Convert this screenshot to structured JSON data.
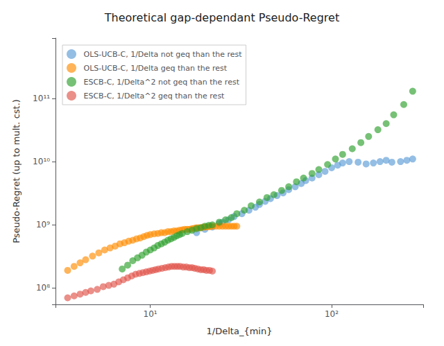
{
  "chart_data": {
    "type": "scatter",
    "title": "Theoretical gap-dependant Pseudo-Regret",
    "xlabel": "1/Delta_{min}",
    "ylabel": "Pseudo-Regret (up to mult. cst.)",
    "log": true,
    "grid": false,
    "legend": "upper left",
    "xlim": [
      3.0,
      320
    ],
    "ylim": [
      55000000.0,
      900000000000.0
    ],
    "xticks": [
      {
        "value": 10,
        "label": "10¹"
      },
      {
        "value": 100,
        "label": "10²"
      }
    ],
    "yticks": [
      {
        "value": 100000000.0,
        "label": "10⁸"
      },
      {
        "value": 1000000000.0,
        "label": "10⁹"
      },
      {
        "value": 10000000000.0,
        "label": "10¹⁰"
      },
      {
        "value": 100000000000.0,
        "label": "10¹¹"
      }
    ],
    "series": [
      {
        "name": "OLS-UCB-C, 1/Delta not geq than the rest",
        "color": "#5B9BD5",
        "x": [
          18,
          20,
          22,
          24,
          25,
          27,
          29,
          32,
          35,
          38,
          40,
          43,
          46,
          50,
          54,
          58,
          63,
          68,
          72,
          78,
          85,
          92,
          100,
          108,
          115,
          125,
          140,
          155,
          170,
          185,
          200,
          215,
          240,
          260,
          280
        ],
        "values": [
          750000000.0,
          850000000.0,
          920000000.0,
          1050000000.0,
          1100000000.0,
          1200000000.0,
          1350000000.0,
          1500000000.0,
          1700000000.0,
          1900000000.0,
          2100000000.0,
          2350000000.0,
          2600000000.0,
          2900000000.0,
          3200000000.0,
          3600000000.0,
          4000000000.0,
          4500000000.0,
          5000000000.0,
          5500000000.0,
          6200000000.0,
          7000000000.0,
          8000000000.0,
          8800000000.0,
          9500000000.0,
          10000000000.0,
          9800000000.0,
          9200000000.0,
          9500000000.0,
          10000000000.0,
          10500000000.0,
          9800000000.0,
          10000000000.0,
          10500000000.0,
          11000000000.0
        ]
      },
      {
        "name": "OLS-UCB-C, 1/Delta geq than the rest",
        "color": "#FF8C00",
        "x": [
          3.5,
          3.8,
          4.1,
          4.4,
          4.8,
          5.2,
          5.6,
          6.0,
          6.4,
          6.8,
          7.2,
          7.6,
          8.0,
          8.4,
          8.8,
          9.2,
          9.6,
          10.0,
          10.5,
          11.0,
          11.5,
          12.0,
          12.5,
          13.0,
          13.5,
          14.0,
          14.5,
          15.0,
          15.5,
          16.0,
          16.5,
          17.0,
          17.5,
          18.0,
          18.5,
          19.0,
          19.5,
          20.0,
          20.5,
          21.0,
          21.5,
          22.0,
          23.0,
          24.0,
          25.0,
          26.0,
          27.0,
          28.0,
          29.0,
          30.0
        ],
        "values": [
          190000000.0,
          220000000.0,
          250000000.0,
          280000000.0,
          320000000.0,
          360000000.0,
          400000000.0,
          430000000.0,
          460000000.0,
          500000000.0,
          520000000.0,
          550000000.0,
          570000000.0,
          600000000.0,
          620000000.0,
          650000000.0,
          680000000.0,
          700000000.0,
          720000000.0,
          730000000.0,
          750000000.0,
          750000000.0,
          780000000.0,
          780000000.0,
          800000000.0,
          800000000.0,
          820000000.0,
          830000000.0,
          850000000.0,
          850000000.0,
          850000000.0,
          870000000.0,
          880000000.0,
          900000000.0,
          900000000.0,
          900000000.0,
          920000000.0,
          920000000.0,
          930000000.0,
          930000000.0,
          950000000.0,
          950000000.0,
          950000000.0,
          950000000.0,
          950000000.0,
          950000000.0,
          950000000.0,
          950000000.0,
          950000000.0,
          950000000.0
        ]
      },
      {
        "name": "ESCB-C, 1/Delta^2 not geq than the rest",
        "color": "#2CA02C",
        "x": [
          7.0,
          7.5,
          8.0,
          8.5,
          9.0,
          9.5,
          10.0,
          10.5,
          11.0,
          11.5,
          12.0,
          12.5,
          13.0,
          13.5,
          14.0,
          14.5,
          15.0,
          16.0,
          17.0,
          18.0,
          19.0,
          20.0,
          21.0,
          22.0,
          24.0,
          26.0,
          28.0,
          30.0,
          33.0,
          36.0,
          40.0,
          44.0,
          48.0,
          53.0,
          58.0,
          64.0,
          70.0,
          78.0,
          85.0,
          95.0,
          105.0,
          115.0,
          130.0,
          145.0,
          160.0,
          180.0,
          200.0,
          220.0,
          250.0,
          280.0
        ],
        "values": [
          200000000.0,
          230000000.0,
          270000000.0,
          300000000.0,
          330000000.0,
          370000000.0,
          400000000.0,
          430000000.0,
          470000000.0,
          500000000.0,
          530000000.0,
          570000000.0,
          600000000.0,
          630000000.0,
          670000000.0,
          700000000.0,
          730000000.0,
          780000000.0,
          820000000.0,
          870000000.0,
          900000000.0,
          950000000.0,
          980000000.0,
          1000000000.0,
          1100000000.0,
          1200000000.0,
          1300000000.0,
          1500000000.0,
          1700000000.0,
          2000000000.0,
          2300000000.0,
          2700000000.0,
          3000000000.0,
          3500000000.0,
          4000000000.0,
          4800000000.0,
          5500000000.0,
          6500000000.0,
          7500000000.0,
          9000000000.0,
          11000000000.0,
          13000000000.0,
          16000000000.0,
          20000000000.0,
          25000000000.0,
          32000000000.0,
          40000000000.0,
          55000000000.0,
          80000000000.0,
          130000000000.0
        ]
      },
      {
        "name": "ESCB-C, 1/Delta^2 geq than the rest",
        "color": "#E0534A",
        "x": [
          3.5,
          3.8,
          4.1,
          4.4,
          4.7,
          5.1,
          5.5,
          5.9,
          6.3,
          6.7,
          7.1,
          7.5,
          7.9,
          8.3,
          8.7,
          9.1,
          9.5,
          9.9,
          10.3,
          10.7,
          11.1,
          11.6,
          12.1,
          12.6,
          13.1,
          13.6,
          14.1,
          14.6,
          15.2,
          15.8,
          16.4,
          17.0,
          17.6,
          18.3,
          19.0,
          19.7,
          20.4,
          21.2,
          22.0
        ],
        "values": [
          70000000.0,
          75000000.0,
          80000000.0,
          85000000.0,
          90000000.0,
          95000000.0,
          105000000.0,
          110000000.0,
          115000000.0,
          125000000.0,
          135000000.0,
          145000000.0,
          155000000.0,
          165000000.0,
          170000000.0,
          175000000.0,
          180000000.0,
          185000000.0,
          190000000.0,
          195000000.0,
          200000000.0,
          205000000.0,
          210000000.0,
          215000000.0,
          220000000.0,
          220000000.0,
          220000000.0,
          220000000.0,
          215000000.0,
          215000000.0,
          210000000.0,
          210000000.0,
          205000000.0,
          200000000.0,
          195000000.0,
          195000000.0,
          190000000.0,
          190000000.0,
          185000000.0
        ]
      }
    ]
  }
}
